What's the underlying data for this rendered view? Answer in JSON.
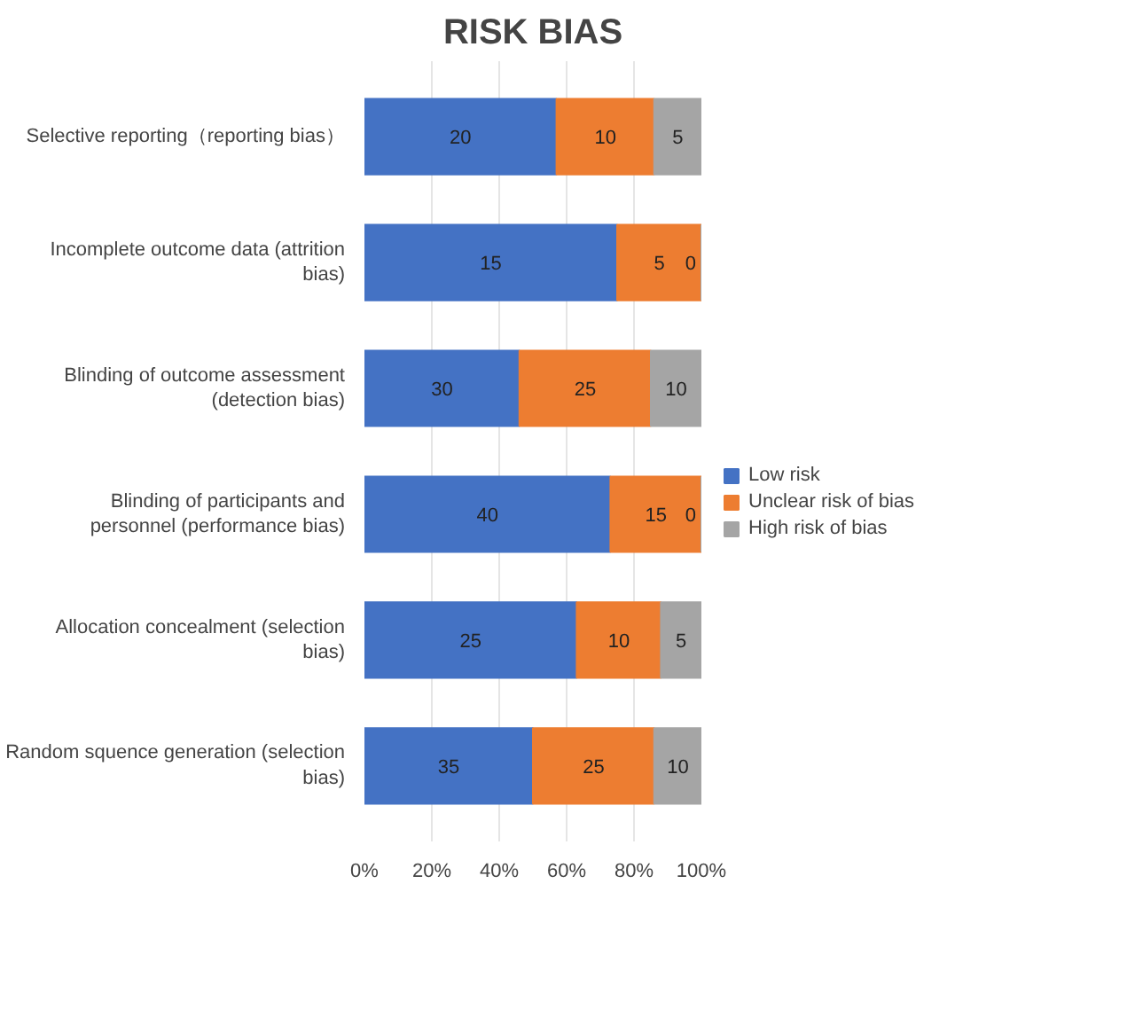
{
  "chart_data": {
    "type": "bar",
    "title": "RISK BIAS",
    "orientation": "horizontal",
    "stacked": true,
    "categories": [
      "Selective reporting（reporting bias）",
      "Incomplete outcome data (attrition bias)",
      "Blinding of outcome assessment (detection bias)",
      "Blinding of participants and personnel (performance bias)",
      "Allocation concealment (selection bias)",
      "Random squence generation (selection bias)"
    ],
    "series": [
      {
        "name": "Low risk",
        "color": "#4472c4",
        "values": [
          57,
          75,
          46,
          73,
          63,
          50
        ]
      },
      {
        "name": "Unclear risk of bias",
        "color": "#ed7d31",
        "values": [
          29,
          25,
          39,
          27,
          25,
          36
        ]
      },
      {
        "name": "High risk of bias",
        "color": "#a5a5a5",
        "values": [
          14,
          0,
          15,
          0,
          12,
          14
        ]
      }
    ],
    "annotations": [
      "20",
      "10",
      "5",
      "15",
      "5",
      "0",
      "30",
      "25",
      "10",
      "40",
      "15",
      "0",
      "25",
      "10",
      "5",
      "35",
      "25",
      "10"
    ],
    "xlim": [
      0,
      100
    ],
    "xticks": [
      {
        "value": 0,
        "label": "0%"
      },
      {
        "value": 20,
        "label": "20%"
      },
      {
        "value": 40,
        "label": "40%"
      },
      {
        "value": 60,
        "label": "60%"
      },
      {
        "value": 80,
        "label": "80%"
      },
      {
        "value": 100,
        "label": "100%"
      }
    ],
    "grid": "x",
    "legend": "right"
  }
}
